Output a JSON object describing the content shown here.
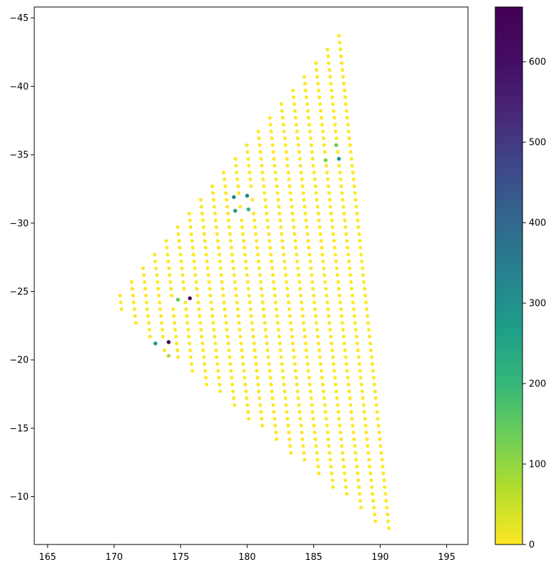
{
  "chart_data": {
    "type": "scatter",
    "title": "",
    "xlabel": "",
    "ylabel": "",
    "xlim": [
      164,
      196.6
    ],
    "ylim": [
      -45.8,
      -6.5
    ],
    "y_inverted": true,
    "xticks": [
      165,
      170,
      175,
      180,
      185,
      190,
      195
    ],
    "yticks": [
      -45,
      -40,
      -35,
      -30,
      -25,
      -20,
      -15,
      -10
    ],
    "grid": false,
    "legend": "none",
    "colorbar": {
      "cmap": "viridis_r",
      "min": 0,
      "max": 668,
      "ticks": [
        0,
        100,
        200,
        300,
        400,
        500,
        600
      ]
    },
    "bulk_value": 0,
    "points": [
      {
        "x": 175.7,
        "y": -24.5,
        "value": 668
      },
      {
        "x": 174.1,
        "y": -21.3,
        "value": 660
      },
      {
        "x": 173.1,
        "y": -21.2,
        "value": 290
      },
      {
        "x": 179.0,
        "y": -31.9,
        "value": 320
      },
      {
        "x": 180.0,
        "y": -32.0,
        "value": 330
      },
      {
        "x": 179.1,
        "y": -30.9,
        "value": 270
      },
      {
        "x": 180.1,
        "y": -31.0,
        "value": 210
      },
      {
        "x": 186.9,
        "y": -34.7,
        "value": 290
      },
      {
        "x": 185.9,
        "y": -34.6,
        "value": 130
      },
      {
        "x": 186.7,
        "y": -35.7,
        "value": 140
      },
      {
        "x": 174.8,
        "y": -24.4,
        "value": 150
      },
      {
        "x": 174.1,
        "y": -20.3,
        "value": 70
      }
    ],
    "region": {
      "vertices": [
        [
          169.8,
          -23.9
        ],
        [
          186.9,
          -43.7
        ],
        [
          190.7,
          -7.3
        ]
      ],
      "rows_y": [
        -43.7,
        -43.2,
        -42.7,
        -42.2,
        -41.7,
        -41.2,
        -40.7,
        -40.2,
        -39.7,
        -39.2,
        -38.7,
        -38.2,
        -37.7,
        -37.2,
        -36.7,
        -36.2,
        -35.7,
        -35.2,
        -34.7,
        -34.2,
        -33.7,
        -33.2,
        -32.7,
        -32.2,
        -31.7,
        -31.2,
        -30.7,
        -30.2,
        -29.7,
        -29.2,
        -28.7,
        -28.2,
        -27.7,
        -27.2,
        -26.7,
        -26.2,
        -25.7,
        -25.2,
        -24.7,
        -24.2,
        -23.7,
        -23.2,
        -22.7,
        -22.2,
        -21.7,
        -21.2,
        -20.7,
        -20.2,
        -19.7,
        -19.2,
        -18.7,
        -18.2,
        -17.7,
        -17.2,
        -16.7,
        -16.2,
        -15.7,
        -15.2,
        -14.7,
        -14.2,
        -13.7,
        -13.2,
        -12.7,
        -12.2,
        -11.7,
        -11.2,
        -10.7,
        -10.2,
        -9.7,
        -9.2,
        -8.7,
        -8.2,
        -7.7,
        -7.2
      ],
      "x_step": 0.97
    }
  }
}
